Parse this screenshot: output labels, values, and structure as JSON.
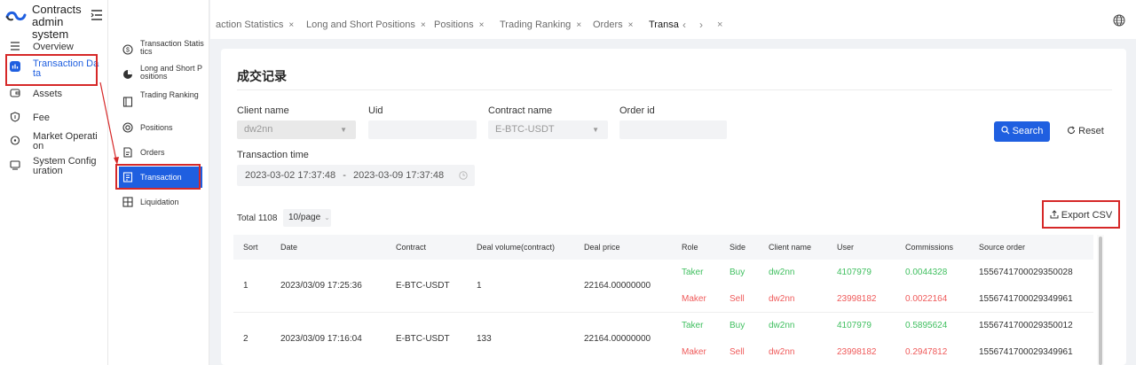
{
  "app": {
    "title": "Contracts admin system"
  },
  "menu": [
    {
      "label": "Overview",
      "icon": "list-icon"
    },
    {
      "label": "Transaction Data",
      "icon": "chart-square-icon",
      "active": true
    },
    {
      "label": "Assets",
      "icon": "wallet-icon"
    },
    {
      "label": "Fee",
      "icon": "shield-icon"
    },
    {
      "label": "Market Operation",
      "icon": "pin-icon"
    },
    {
      "label": "System Configuration",
      "icon": "monitor-icon"
    }
  ],
  "submenu": [
    {
      "label": "Transaction Statistics",
      "icon": "dollar-circle-icon"
    },
    {
      "label": "Long and Short Positions",
      "icon": "pie-icon"
    },
    {
      "label": "Trading Ranking",
      "icon": "book-icon"
    },
    {
      "label": "Positions",
      "icon": "target-icon"
    },
    {
      "label": "Orders",
      "icon": "document-icon"
    },
    {
      "label": "Transaction",
      "icon": "receipt-icon",
      "selected": true
    },
    {
      "label": "Liquidation",
      "icon": "grid-icon"
    }
  ],
  "tabs": [
    {
      "label": "action Statistics"
    },
    {
      "label": "Long and Short Positions"
    },
    {
      "label": "Positions"
    },
    {
      "label": "Trading Ranking"
    },
    {
      "label": "Orders"
    },
    {
      "label": "Transa",
      "active": true
    }
  ],
  "page": {
    "title": "成交记录",
    "filters": {
      "client_name": {
        "label": "Client name",
        "value": "dw2nn"
      },
      "uid": {
        "label": "Uid",
        "value": ""
      },
      "contract_name": {
        "label": "Contract name",
        "value": "E-BTC-USDT"
      },
      "order_id": {
        "label": "Order id",
        "value": ""
      },
      "transaction_time": {
        "label": "Transaction time",
        "start": "2023-03-02 17:37:48",
        "separator": "-",
        "end": "2023-03-09 17:37:48"
      }
    },
    "buttons": {
      "search": "Search",
      "reset": "Reset",
      "export": "Export CSV"
    },
    "total": "Total 1108",
    "page_size": "10/page"
  },
  "table": {
    "columns": [
      "Sort",
      "Date",
      "Contract",
      "Deal volume(contract)",
      "Deal price",
      "Role",
      "Side",
      "Client name",
      "User",
      "Commissions",
      "Source order"
    ],
    "rows": [
      {
        "sort": "1",
        "date": "2023/03/09 17:25:36",
        "contract": "E-BTC-USDT",
        "volume": "1",
        "price": "22164.00000000",
        "legs": [
          {
            "role": "Taker",
            "side": "Buy",
            "client": "dw2nn",
            "user": "4107979",
            "commission": "0.0044328",
            "source": "1556741700029350028",
            "color": "#3fbf5f"
          },
          {
            "role": "Maker",
            "side": "Sell",
            "client": "dw2nn",
            "user": "23998182",
            "commission": "0.0022164",
            "source": "1556741700029349961",
            "color": "#ef5a5a"
          }
        ]
      },
      {
        "sort": "2",
        "date": "2023/03/09 17:16:04",
        "contract": "E-BTC-USDT",
        "volume": "133",
        "price": "22164.00000000",
        "legs": [
          {
            "role": "Taker",
            "side": "Buy",
            "client": "dw2nn",
            "user": "4107979",
            "commission": "0.5895624",
            "source": "1556741700029350012",
            "color": "#3fbf5f"
          },
          {
            "role": "Maker",
            "side": "Sell",
            "client": "dw2nn",
            "user": "23998182",
            "commission": "0.2947812",
            "source": "1556741700029349961",
            "color": "#ef5a5a"
          }
        ]
      }
    ]
  }
}
